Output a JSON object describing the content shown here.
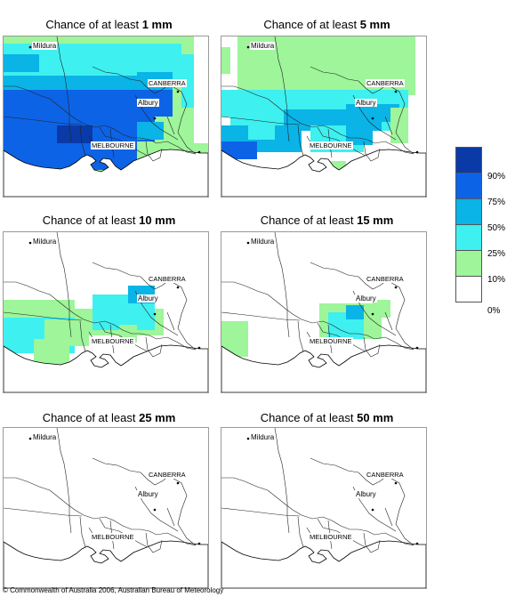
{
  "panels": [
    {
      "title_prefix": "Chance of at least ",
      "amount": "1 mm",
      "level": 1
    },
    {
      "title_prefix": "Chance of at least ",
      "amount": "5 mm",
      "level": 2
    },
    {
      "title_prefix": "Chance of at least ",
      "amount": "10 mm",
      "level": 3
    },
    {
      "title_prefix": "Chance of at least ",
      "amount": "15 mm",
      "level": 4
    },
    {
      "title_prefix": "Chance of at least ",
      "amount": "25 mm",
      "level": 5
    },
    {
      "title_prefix": "Chance of at least ",
      "amount": "50 mm",
      "level": 6
    }
  ],
  "places": {
    "mildura": "Mildura",
    "canberra": "CANBERRA",
    "albury": "Albury",
    "melbourne": "MELBOURNE"
  },
  "legend": {
    "labels": [
      "90%",
      "75%",
      "50%",
      "25%",
      "10%",
      "0%"
    ],
    "colors": [
      "#0a3aa8",
      "#0d63e6",
      "#0ab4e6",
      "#3ef0f0",
      "#9ef59a",
      "#ffffff"
    ]
  },
  "copyright": "© Commonwealth of Australia 2006, Australian Bureau of Meteorology"
}
